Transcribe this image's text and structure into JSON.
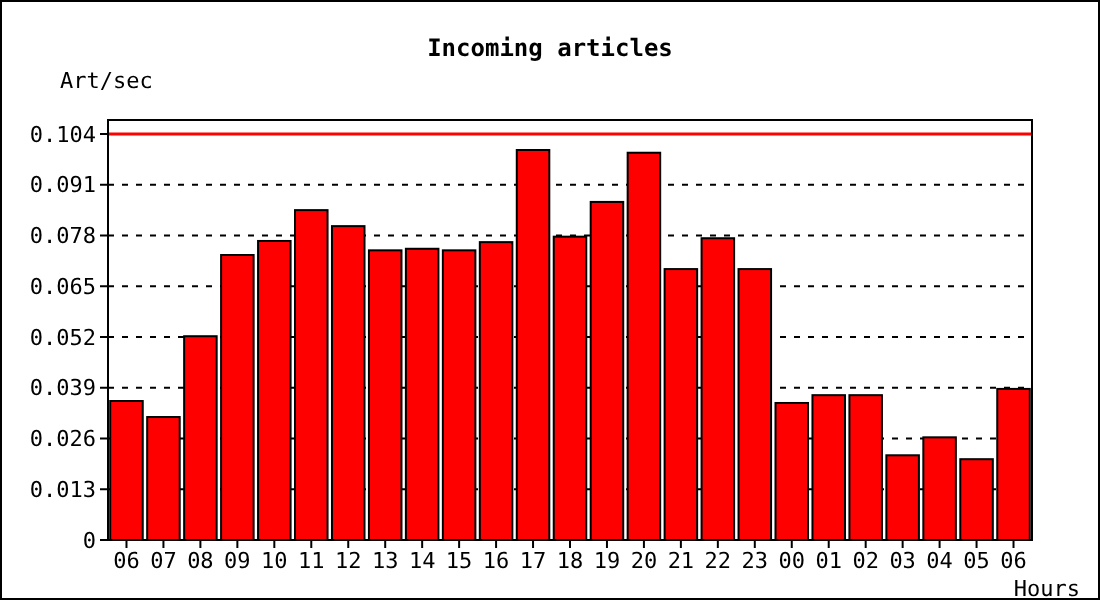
{
  "chart_data": {
    "type": "bar",
    "title": "Incoming articles",
    "ylabel": "Art/sec",
    "xlabel": "Hours",
    "categories": [
      "06",
      "07",
      "08",
      "09",
      "10",
      "11",
      "12",
      "13",
      "14",
      "15",
      "16",
      "17",
      "18",
      "19",
      "20",
      "21",
      "22",
      "23",
      "00",
      "01",
      "02",
      "03",
      "04",
      "05",
      "06"
    ],
    "values": [
      0.0356,
      0.0315,
      0.0522,
      0.073,
      0.0766,
      0.0845,
      0.0804,
      0.0742,
      0.0746,
      0.0742,
      0.0763,
      0.0999,
      0.0777,
      0.0866,
      0.0992,
      0.0694,
      0.0773,
      0.0694,
      0.0351,
      0.0371,
      0.0371,
      0.0217,
      0.0263,
      0.0207,
      0.0387
    ],
    "color": "#ff0000",
    "ylim": [
      0,
      0.104
    ],
    "yticks": [
      0,
      0.013,
      0.026,
      0.039,
      0.052,
      0.065,
      0.078,
      0.091,
      0.104
    ],
    "grid": "y",
    "ref_lines": [
      {
        "axis": "y",
        "value": 0.104,
        "color": "#ff0000"
      }
    ]
  }
}
